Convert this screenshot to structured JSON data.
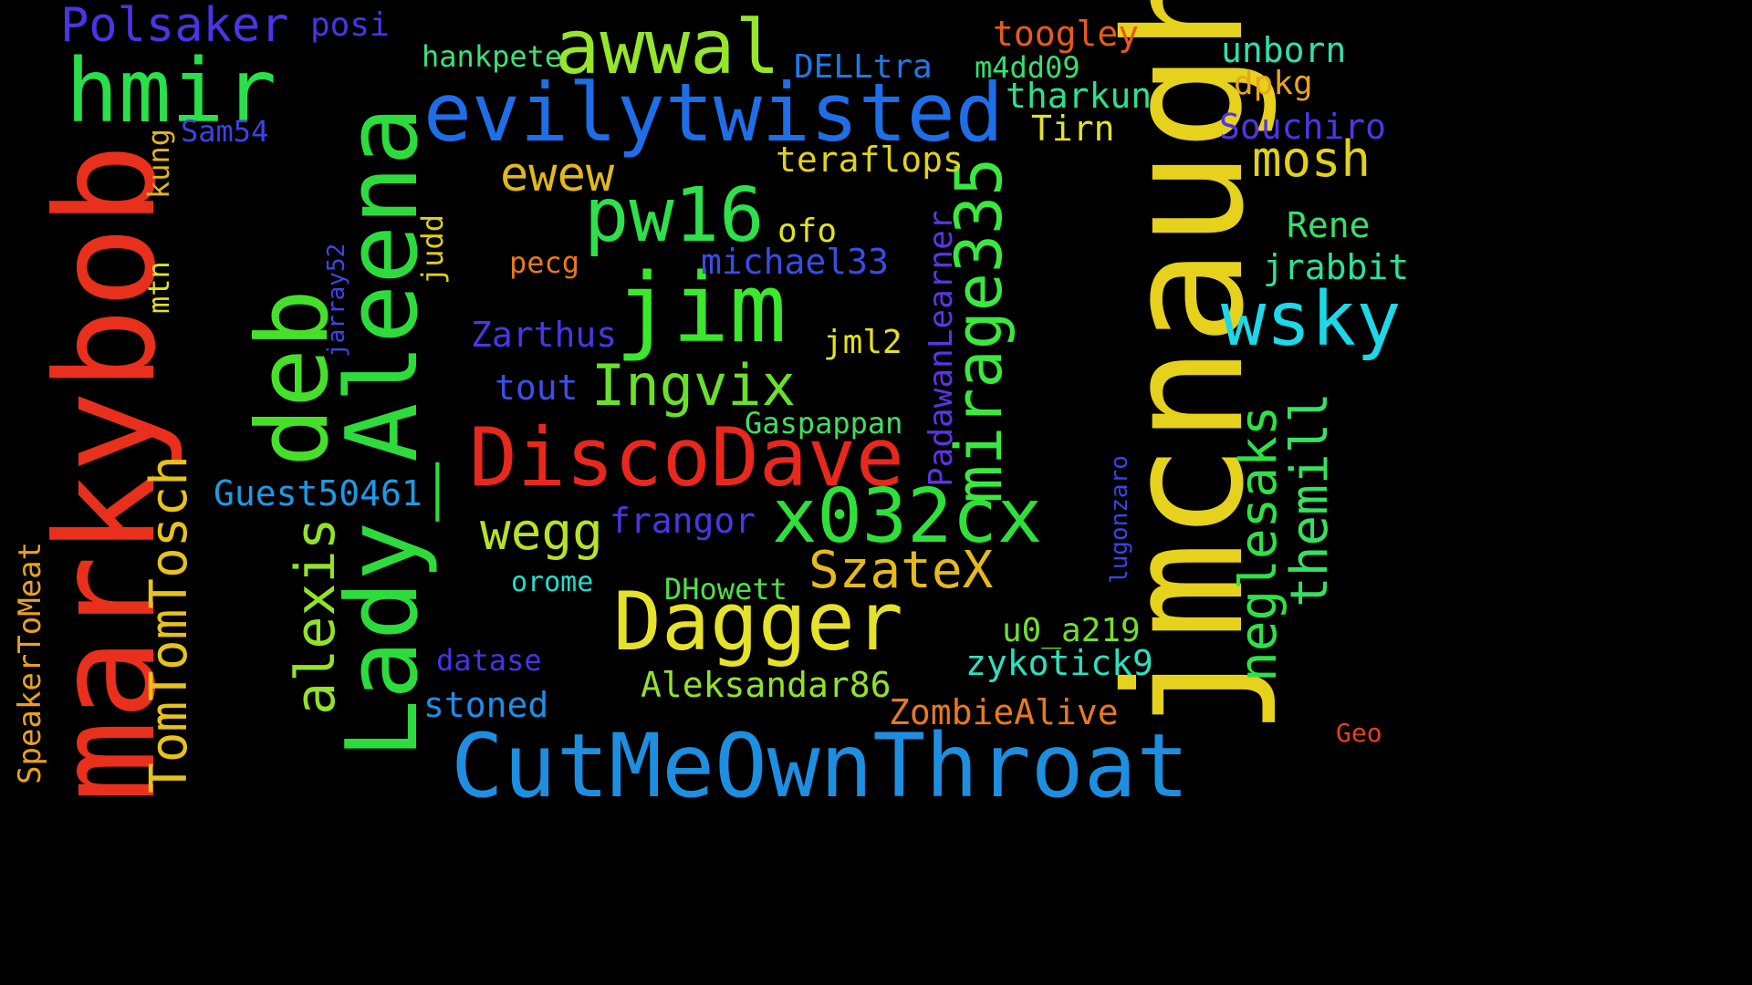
{
  "words": [
    {
      "text": "markybob",
      "color": "#e8301c"
    },
    {
      "text": "jmcnaught",
      "color": "#e6d21c"
    },
    {
      "text": "CutMeOwnThroat",
      "color": "#1e8ee0"
    },
    {
      "text": "Lady_Aleena",
      "color": "#2ddc3c"
    },
    {
      "text": "DiscoDave",
      "color": "#e8281c"
    },
    {
      "text": "evilytwisted",
      "color": "#1e6ee8"
    },
    {
      "text": "hmir",
      "color": "#28e04a"
    },
    {
      "text": "jim",
      "color": "#3ae82c"
    },
    {
      "text": "Dagger",
      "color": "#e6e22a"
    },
    {
      "text": "x032cx",
      "color": "#30e03a"
    },
    {
      "text": "deb",
      "color": "#46e02a"
    },
    {
      "text": "mirage335",
      "color": "#3ae840"
    },
    {
      "text": "awwal",
      "color": "#96e62a"
    },
    {
      "text": "pw16",
      "color": "#2ee04c"
    },
    {
      "text": "wsky",
      "color": "#1cd8e8"
    },
    {
      "text": "alexis",
      "color": "#92e22a"
    },
    {
      "text": "TomTomTosch",
      "color": "#e6c21c"
    },
    {
      "text": "Ingvix",
      "color": "#6ae02c"
    },
    {
      "text": "neglesaks",
      "color": "#2ee246"
    },
    {
      "text": "themill",
      "color": "#36e060"
    },
    {
      "text": "Polsaker",
      "color": "#4c34e6"
    },
    {
      "text": "SzateX",
      "color": "#e6ba1c"
    },
    {
      "text": "wegg",
      "color": "#b6e228"
    },
    {
      "text": "mosh",
      "color": "#e2d21c"
    },
    {
      "text": "ewew",
      "color": "#e2b81c"
    },
    {
      "text": "ZombieAlive",
      "color": "#e87a1c"
    },
    {
      "text": "Guest50461",
      "color": "#1e9ae6"
    },
    {
      "text": "Zarthus",
      "color": "#4a36e6"
    },
    {
      "text": "zykotick9",
      "color": "#2ee0c0"
    },
    {
      "text": "Aleksandar86",
      "color": "#92e22a"
    },
    {
      "text": "tout",
      "color": "#3e4ee6"
    },
    {
      "text": "frangor",
      "color": "#4e34e2"
    },
    {
      "text": "stoned",
      "color": "#1e8ee6"
    },
    {
      "text": "u0_a219",
      "color": "#72e02c"
    },
    {
      "text": "teraflops",
      "color": "#e2d21c"
    },
    {
      "text": "michael33",
      "color": "#3a4ce6"
    },
    {
      "text": "Souchiro",
      "color": "#5234e6"
    },
    {
      "text": "tharkun",
      "color": "#2ee08c"
    },
    {
      "text": "unborn",
      "color": "#2ee0b0"
    },
    {
      "text": "SpeakerToMeat",
      "color": "#e8a21c"
    },
    {
      "text": "PadawanLearner",
      "color": "#5c34e6"
    },
    {
      "text": "jrabbit",
      "color": "#2ee29a"
    },
    {
      "text": "Rene",
      "color": "#36e06e"
    },
    {
      "text": "DELLtra",
      "color": "#1e7ae6"
    },
    {
      "text": "Tirn",
      "color": "#e2e22a"
    },
    {
      "text": "toogley",
      "color": "#e85a1c"
    },
    {
      "text": "hankpete",
      "color": "#3ee07a"
    },
    {
      "text": "jml2",
      "color": "#e2e21c"
    },
    {
      "text": "Gaspappan",
      "color": "#3ee060"
    },
    {
      "text": "DHowett",
      "color": "#4ee04a"
    },
    {
      "text": "ofo",
      "color": "#e2e21c"
    },
    {
      "text": "dpkg",
      "color": "#e8a61c"
    },
    {
      "text": "m4dd09",
      "color": "#36e06c"
    },
    {
      "text": "posi",
      "color": "#4a34e6"
    },
    {
      "text": "Sam54",
      "color": "#3a44e6"
    },
    {
      "text": "kung",
      "color": "#e2b61c"
    },
    {
      "text": "mtn",
      "color": "#e2e41c"
    },
    {
      "text": "jarray52",
      "color": "#3c46e6"
    },
    {
      "text": "judd",
      "color": "#e2ce1c"
    },
    {
      "text": "pecg",
      "color": "#e8781c"
    },
    {
      "text": "datase",
      "color": "#4634e6"
    },
    {
      "text": "orome",
      "color": "#1ee0d0"
    },
    {
      "text": "lugonzaro",
      "color": "#3846e6"
    },
    {
      "text": "Geo",
      "color": "#e8401c"
    }
  ]
}
